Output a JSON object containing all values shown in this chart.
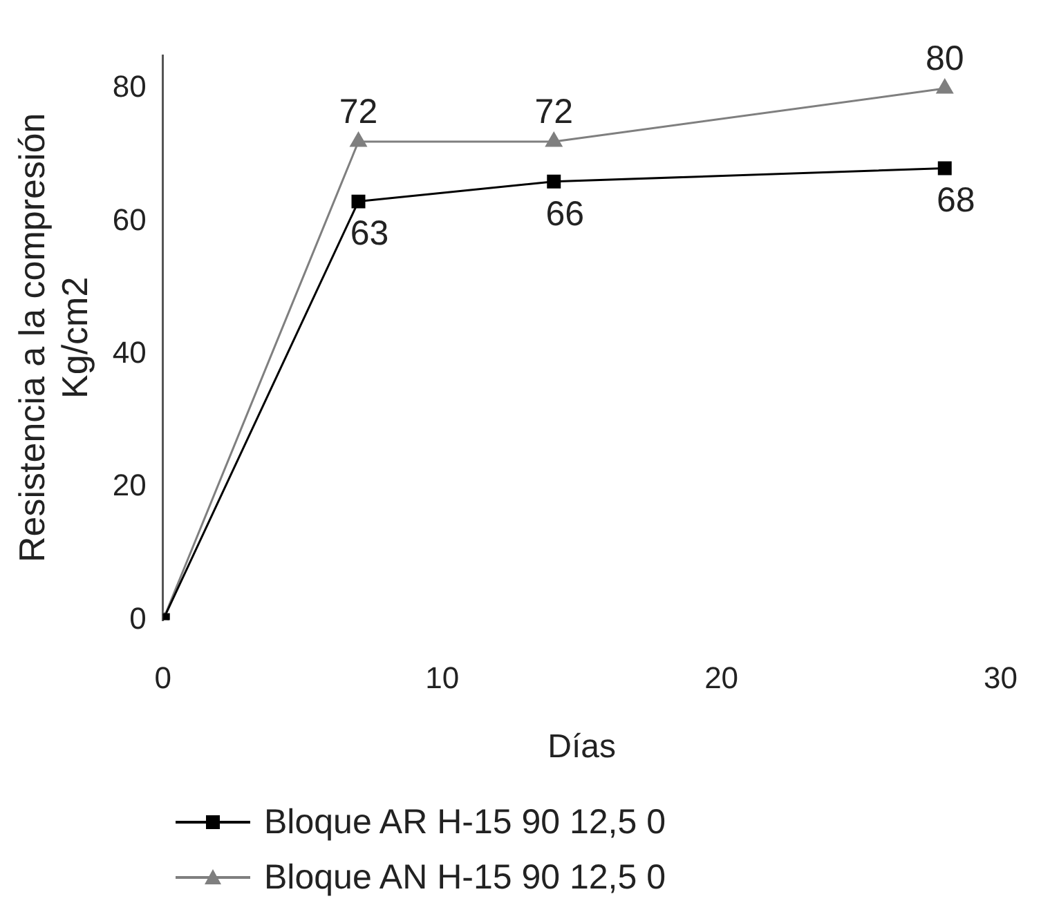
{
  "chart_data": {
    "type": "line",
    "xlabel": "Días",
    "ylabel": "Resistencia a la compresión\nKg/cm2",
    "x": [
      0,
      7,
      14,
      28
    ],
    "series": [
      {
        "name": "Bloque AR H-15 90 12,5 0",
        "color": "#000000",
        "marker": "square",
        "values": [
          0,
          63,
          66,
          68
        ],
        "value_labels": [
          null,
          "63",
          "66",
          "68"
        ]
      },
      {
        "name": "Bloque AN H-15 90 12,5 0",
        "color": "#7f7f7f",
        "marker": "triangle",
        "values": [
          0,
          72,
          72,
          80
        ],
        "value_labels": [
          null,
          "72",
          "72",
          "80"
        ]
      }
    ],
    "xlim": [
      0,
      30
    ],
    "xticks": [
      0,
      10,
      20,
      30
    ],
    "ylim": [
      0,
      85
    ],
    "yticks": [
      0,
      20,
      40,
      60,
      80
    ],
    "grid": false,
    "legend": "bottom",
    "line_style": "solid"
  }
}
